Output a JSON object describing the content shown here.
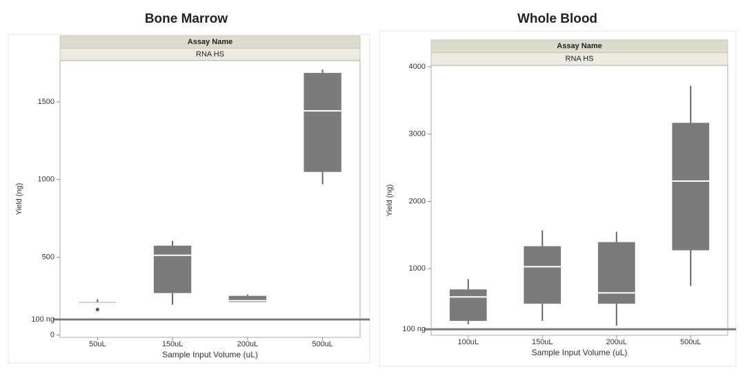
{
  "chart_data": [
    {
      "type": "box",
      "title": "Bone Marrow",
      "header": [
        "Assay Name",
        "RNA HS"
      ],
      "x_label": "Sample Input Volume (uL)",
      "y_label": "Yield (ng)",
      "categories": [
        "50uL",
        "150uL",
        "200uL",
        "500uL"
      ],
      "whisker_low": [
        200,
        195,
        212,
        969
      ],
      "q1": [
        200,
        270,
        212,
        1049
      ],
      "median": [
        205,
        513,
        221,
        1442
      ],
      "q3": [
        212,
        575,
        252,
        1686
      ],
      "whisker_high": [
        230,
        606,
        261,
        1708
      ],
      "outliers": [
        [
          164
        ],
        [],
        [],
        []
      ],
      "color": "#7b7b7b",
      "ylim": [
        -15,
        1765
      ],
      "yticks": [
        0,
        500,
        1000,
        1500
      ],
      "reference": {
        "value": 100,
        "label": "100 ng"
      }
    },
    {
      "type": "box",
      "title": "Whole Blood",
      "header": [
        "Assay Name",
        "RNA HS"
      ],
      "x_label": "Sample Input Volume (uL)",
      "y_label": "Yield (ng)",
      "categories": [
        "100uL",
        "150uL",
        "200uL",
        "500uL"
      ],
      "whisker_low": [
        173,
        224,
        153,
        743
      ],
      "q1": [
        224,
        479,
        479,
        1273
      ],
      "median": [
        580,
        1029,
        641,
        2301
      ],
      "q3": [
        692,
        1334,
        1395,
        3167
      ],
      "whisker_high": [
        845,
        1568,
        1548,
        3717
      ],
      "outliers": [
        [],
        [],
        [],
        []
      ],
      "color": "#7b7b7b",
      "ylim": [
        10,
        4020
      ],
      "yticks": [
        1000,
        2000,
        3000,
        4000
      ],
      "reference": {
        "value": 100,
        "label": "100 ng"
      }
    }
  ]
}
